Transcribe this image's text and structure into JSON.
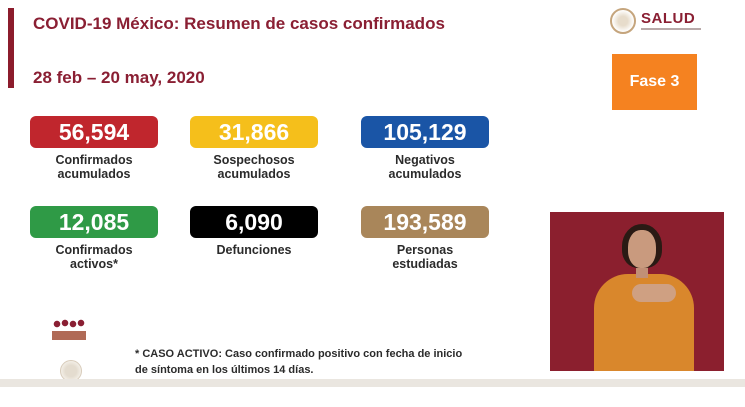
{
  "header": {
    "title": "COVID-19 México: Resumen de casos confirmados",
    "date_range": "28 feb – 20 may, 2020"
  },
  "logo": {
    "text": "SALUD"
  },
  "phase": {
    "label": "Fase 3",
    "color": "#f58220"
  },
  "stats": {
    "confirmados": {
      "value": "56,594",
      "label_line1": "Confirmados",
      "label_line2": "acumulados",
      "color": "#c0262d"
    },
    "sospechosos": {
      "value": "31,866",
      "label_line1": "Sospechosos",
      "label_line2": "acumulados",
      "color": "#f5bf1b"
    },
    "negativos": {
      "value": "105,129",
      "label_line1": "Negativos",
      "label_line2": "acumulados",
      "color": "#1a55a6"
    },
    "activos": {
      "value": "12,085",
      "label_line1": "Confirmados",
      "label_line2": "activos*",
      "color": "#2f9a46"
    },
    "defunciones": {
      "value": "6,090",
      "label_line1": "Defunciones",
      "label_line2": "",
      "color": "#000000"
    },
    "personas": {
      "value": "193,589",
      "label_line1": "Personas",
      "label_line2": "estudiadas",
      "color": "#a9865a"
    }
  },
  "footnote": {
    "line1": "* CASO ACTIVO: Caso confirmado positivo con fecha de inicio",
    "line2": "de síntoma en los últimos 14 días."
  },
  "brand_color": "#8a1f33"
}
